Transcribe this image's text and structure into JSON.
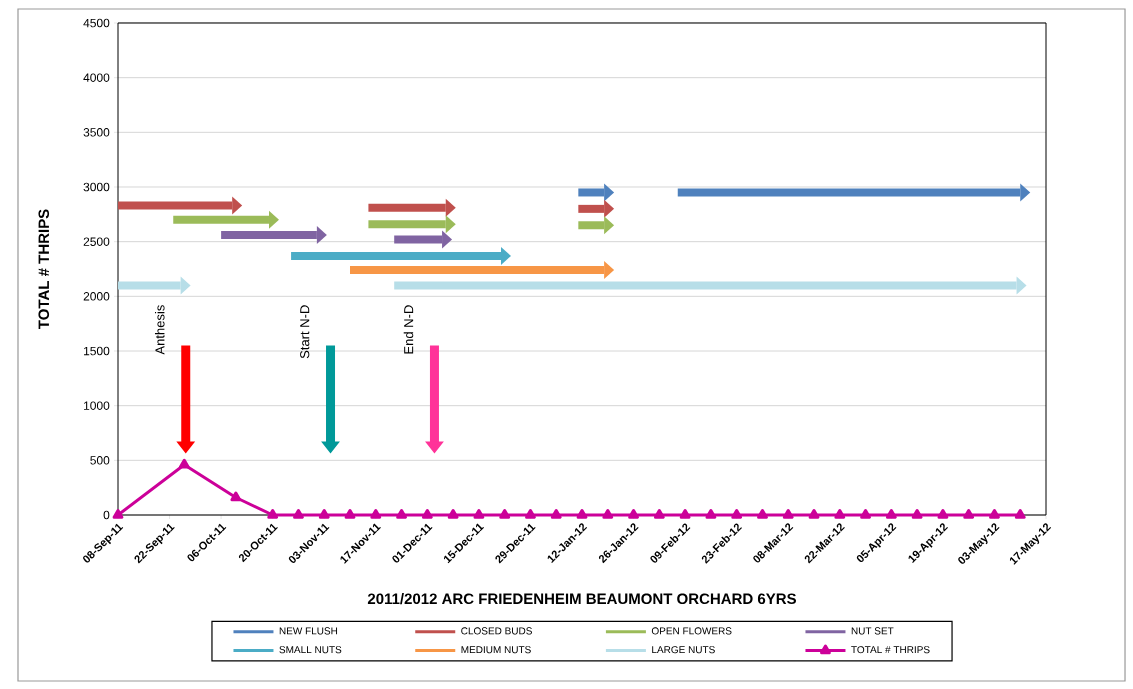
{
  "chart_data": {
    "type": "line",
    "xlabel": "2011/2012 ARC  FRIEDENHEIM  BEAUMONT ORCHARD  6YRS",
    "ylabel": "TOTAL # THRIPS",
    "xlim": [
      "2011-09-08",
      "2012-05-17"
    ],
    "xticks": [
      {
        "value": "2011-09-08",
        "label": "08-Sep-11"
      },
      {
        "value": "2011-09-22",
        "label": "22-Sep-11"
      },
      {
        "value": "2011-10-06",
        "label": "06-Oct-11"
      },
      {
        "value": "2011-10-20",
        "label": "20-Oct-11"
      },
      {
        "value": "2011-11-03",
        "label": "03-Nov-11"
      },
      {
        "value": "2011-11-17",
        "label": "17-Nov-11"
      },
      {
        "value": "2011-12-01",
        "label": "01-Dec-11"
      },
      {
        "value": "2011-12-15",
        "label": "15-Dec-11"
      },
      {
        "value": "2011-12-29",
        "label": "29-Dec-11"
      },
      {
        "value": "2012-01-12",
        "label": "12-Jan-12"
      },
      {
        "value": "2012-01-26",
        "label": "26-Jan-12"
      },
      {
        "value": "2012-02-09",
        "label": "09-Feb-12"
      },
      {
        "value": "2012-02-23",
        "label": "23-Feb-12"
      },
      {
        "value": "2012-03-08",
        "label": "08-Mar-12"
      },
      {
        "value": "2012-03-22",
        "label": "22-Mar-12"
      },
      {
        "value": "2012-04-05",
        "label": "05-Apr-12"
      },
      {
        "value": "2012-04-19",
        "label": "19-Apr-12"
      },
      {
        "value": "2012-05-03",
        "label": "03-May-12"
      },
      {
        "value": "2012-05-17",
        "label": "17-May-12"
      }
    ],
    "ylim": [
      0,
      4500
    ],
    "yticks": [
      0,
      500,
      1000,
      1500,
      2000,
      2500,
      3000,
      3500,
      4000,
      4500
    ],
    "grid": "y",
    "legend": "bottom",
    "line_style": "solid",
    "series": [
      {
        "name": "NEW FLUSH",
        "color": "#4f81bd",
        "x": [
          "2012-01-11",
          "2012-01-18"
        ],
        "values": [
          2950,
          2950
        ]
      },
      {
        "name": "CLOSED BUDS",
        "color": "#c0504d",
        "x": [
          "2011-09-08",
          "2011-10-09"
        ],
        "values": [
          2830,
          2830
        ]
      },
      {
        "name": "OPEN FLOWERS",
        "color": "#9bbb59",
        "x": [
          "2011-09-23",
          "2011-10-19"
        ],
        "values": [
          2700,
          2700
        ]
      },
      {
        "name": "NUT SET",
        "color": "#8064a2",
        "x": [
          "2011-10-06",
          "2011-11-01"
        ],
        "values": [
          2560,
          2560
        ]
      },
      {
        "name": "SMALL NUTS",
        "color": "#4bacc6",
        "x": [
          "2011-10-25",
          "2011-12-21"
        ],
        "values": [
          2370,
          2370
        ]
      },
      {
        "name": "MEDIUM NUTS",
        "color": "#f79646",
        "x": [
          "2011-11-10",
          "2012-01-18"
        ],
        "values": [
          2240,
          2240
        ]
      },
      {
        "name": "LARGE NUTS",
        "color": "#b7dee8",
        "x": [
          "2011-09-08",
          "2011-09-25"
        ],
        "values": [
          2100,
          2100
        ]
      },
      {
        "name": "TOTAL # THRIPS",
        "color": "#cc0099",
        "marker": "triangle",
        "x": [
          "2011-09-08",
          "2011-09-26",
          "2011-10-10",
          "2011-10-20",
          "2011-10-27",
          "2011-11-03",
          "2011-11-10",
          "2011-11-17",
          "2011-11-24",
          "2011-12-01",
          "2011-12-08",
          "2011-12-15",
          "2011-12-22",
          "2011-12-29",
          "2012-01-05",
          "2012-01-12",
          "2012-01-19",
          "2012-01-26",
          "2012-02-02",
          "2012-02-09",
          "2012-02-16",
          "2012-02-23",
          "2012-03-01",
          "2012-03-08",
          "2012-03-15",
          "2012-03-22",
          "2012-03-29",
          "2012-04-05",
          "2012-04-12",
          "2012-04-19",
          "2012-04-26",
          "2012-05-03",
          "2012-05-10"
        ],
        "values": [
          0,
          460,
          160,
          0,
          0,
          0,
          0,
          0,
          0,
          0,
          0,
          0,
          0,
          0,
          0,
          0,
          0,
          0,
          0,
          0,
          0,
          0,
          0,
          0,
          0,
          0,
          0,
          0,
          0,
          0,
          0,
          0,
          0
        ]
      },
      {
        "color": "#4f81bd",
        "x": [
          "2012-02-07",
          "2012-05-10"
        ],
        "values": [
          2950,
          2950
        ]
      },
      {
        "color": "#c0504d",
        "x": [
          "2011-11-15",
          "2011-12-06"
        ],
        "values": [
          2810,
          2810
        ]
      },
      {
        "color": "#c0504d",
        "x": [
          "2012-01-11",
          "2012-01-18"
        ],
        "values": [
          2800,
          2800
        ]
      },
      {
        "color": "#9bbb59",
        "x": [
          "2011-11-15",
          "2011-12-06"
        ],
        "values": [
          2660,
          2660
        ]
      },
      {
        "color": "#9bbb59",
        "x": [
          "2012-01-11",
          "2012-01-18"
        ],
        "values": [
          2650,
          2650
        ]
      },
      {
        "color": "#8064a2",
        "x": [
          "2011-11-22",
          "2011-12-05"
        ],
        "values": [
          2520,
          2520
        ]
      },
      {
        "color": "#b7dee8",
        "x": [
          "2011-11-22",
          "2012-05-09"
        ],
        "values": [
          2100,
          2100
        ]
      }
    ],
    "annotations": [
      "Anthesis",
      "Start N-D",
      "End N-D"
    ]
  }
}
